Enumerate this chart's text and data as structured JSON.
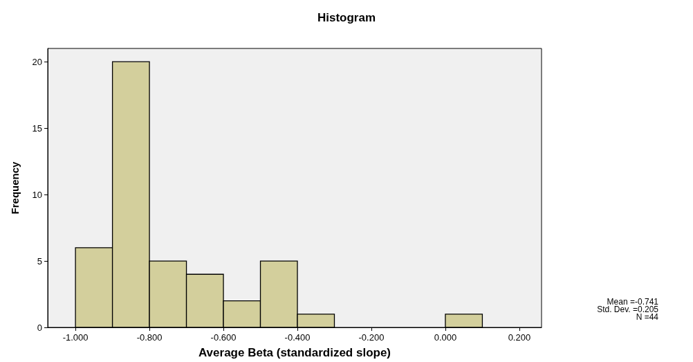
{
  "chart_data": {
    "type": "histogram",
    "title": "Histogram",
    "xlabel": "Average Beta (standardized slope)",
    "ylabel": "Frequency",
    "bins": [
      -1.0,
      -0.9,
      -0.8,
      -0.7,
      -0.6,
      -0.5,
      -0.4,
      -0.3,
      -0.2,
      -0.1,
      0.0,
      0.1
    ],
    "values": [
      6,
      20,
      5,
      4,
      2,
      5,
      1,
      0,
      0,
      0,
      1
    ],
    "color": "#d3cf9c",
    "xlim": [
      -1.075,
      0.26
    ],
    "xticks": [
      {
        "value": -1.0,
        "label": "-1.000"
      },
      {
        "value": -0.8,
        "label": "-0.800"
      },
      {
        "value": -0.6,
        "label": "-0.600"
      },
      {
        "value": -0.4,
        "label": "-0.400"
      },
      {
        "value": -0.2,
        "label": "-0.200"
      },
      {
        "value": 0.0,
        "label": "0.000"
      },
      {
        "value": 0.2,
        "label": "0.200"
      }
    ],
    "ylim": [
      0,
      21
    ],
    "yticks": [
      0,
      5,
      10,
      15,
      20
    ],
    "grid": false,
    "annotations": [
      "Mean =-0.741",
      "Std. Dev. =0.205",
      "N =44"
    ]
  }
}
